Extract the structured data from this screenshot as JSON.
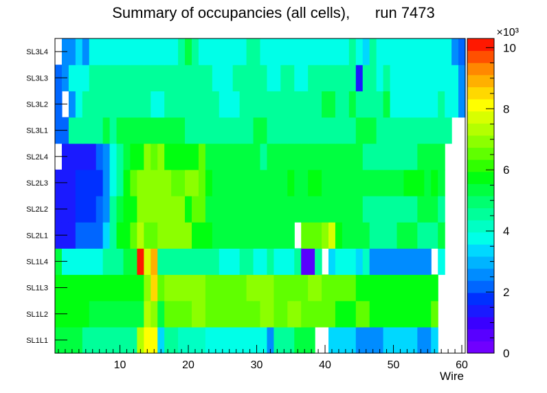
{
  "chart_data": {
    "type": "heatmap",
    "title": "Summary of occupancies (all cells),      run 7473",
    "xlabel": "Wire",
    "ylabel": "",
    "xlim": [
      0.5,
      60.5
    ],
    "x_ticks": [
      "10",
      "20",
      "30",
      "40",
      "50",
      "60"
    ],
    "y_categories": [
      "SL1L1",
      "SL1L2",
      "SL1L3",
      "SL1L4",
      "SL2L1",
      "SL2L2",
      "SL2L3",
      "SL2L4",
      "SL3L1",
      "SL3L2",
      "SL3L3",
      "SL3L4"
    ],
    "colorbar": {
      "min": 0,
      "max": 10.3,
      "exponent_label": "×10³",
      "ticks": [
        "0",
        "2",
        "4",
        "6",
        "8",
        "10"
      ]
    },
    "colors": {
      "palette": [
        "#7000ff",
        "#5800ff",
        "#3a00ff",
        "#1a1aff",
        "#0030ff",
        "#0066ff",
        "#008cff",
        "#00b4ff",
        "#00d8ff",
        "#00ffe8",
        "#00ffc4",
        "#00ff9a",
        "#00ff70",
        "#00ff40",
        "#00ff10",
        "#30ff00",
        "#60ff00",
        "#8cff00",
        "#b4ff00",
        "#d8ff00",
        "#ffff00",
        "#ffd800",
        "#ffb000",
        "#ff8800",
        "#ff5000",
        "#ff1800"
      ]
    },
    "rows": [
      {
        "label": "SL1L1",
        "values": [
          5.3,
          5.3,
          5.3,
          5.3,
          4.6,
          4.6,
          4.6,
          4.6,
          4.6,
          4.6,
          4.6,
          4.6,
          7.2,
          8.2,
          8.2,
          3.5,
          4.6,
          4.6,
          4.3,
          4.3,
          4.3,
          4.3,
          3.8,
          3.8,
          3.8,
          3.8,
          3.8,
          3.8,
          3.8,
          3.8,
          3.8,
          2.7,
          4.6,
          4.6,
          4.6,
          5.3,
          5.3,
          5.3,
          null,
          null,
          3.5,
          3.5,
          3.5,
          3.5,
          2.7,
          2.7,
          2.7,
          2.7,
          3.2,
          3.2,
          3.2,
          3.2,
          3.2,
          2.4,
          2.4,
          3.5,
          null,
          null,
          null,
          null
        ]
      },
      {
        "label": "SL1L2",
        "values": [
          5.9,
          5.9,
          5.9,
          5.9,
          5.9,
          5.3,
          5.3,
          5.3,
          5.3,
          5.3,
          5.3,
          5.3,
          5.3,
          7.2,
          6.8,
          5.3,
          6.4,
          6.4,
          6.4,
          6.4,
          6.8,
          6.8,
          6.4,
          6.4,
          6.4,
          6.4,
          6.4,
          6.4,
          6.4,
          6.4,
          6.8,
          6.8,
          6.4,
          6.4,
          6.8,
          6.8,
          6.4,
          6.4,
          6.4,
          6.4,
          6.4,
          5.9,
          5.9,
          5.9,
          6.4,
          6.4,
          5.9,
          5.9,
          5.9,
          5.9,
          5.9,
          5.9,
          5.9,
          5.9,
          5.9,
          6.4,
          null,
          null,
          null,
          null
        ]
      },
      {
        "label": "SL1L3",
        "values": [
          5.9,
          5.9,
          5.9,
          5.9,
          5.9,
          5.9,
          5.9,
          5.9,
          5.9,
          5.9,
          5.9,
          5.9,
          5.9,
          6.8,
          8.6,
          6.4,
          6.8,
          6.8,
          6.8,
          6.8,
          6.8,
          6.8,
          6.4,
          6.4,
          6.4,
          6.4,
          6.4,
          6.4,
          6.8,
          6.8,
          6.8,
          6.8,
          6.4,
          6.4,
          6.4,
          6.4,
          6.4,
          6.8,
          6.8,
          6.4,
          6.4,
          6.4,
          6.4,
          6.4,
          5.9,
          5.9,
          5.9,
          5.9,
          5.9,
          5.9,
          5.9,
          5.9,
          5.9,
          5.9,
          5.9,
          5.9,
          null,
          null,
          null,
          null
        ]
      },
      {
        "label": "SL1L4",
        "values": [
          5.3,
          3.8,
          3.8,
          3.8,
          3.8,
          3.8,
          3.8,
          4.6,
          4.6,
          4.6,
          5.3,
          5.3,
          10.0,
          7.6,
          9.0,
          4.6,
          4.6,
          4.6,
          4.6,
          4.6,
          4.6,
          4.6,
          4.6,
          4.6,
          3.8,
          3.8,
          3.8,
          4.6,
          4.6,
          3.8,
          3.8,
          4.6,
          3.8,
          3.8,
          3.8,
          4.6,
          0.6,
          0.6,
          4.6,
          null,
          3.2,
          3.8,
          3.8,
          3.8,
          3.2,
          4.2,
          2.7,
          2.7,
          2.7,
          2.7,
          2.7,
          2.7,
          2.7,
          2.7,
          2.7,
          null,
          3.8,
          null,
          null,
          null
        ]
      },
      {
        "label": "SL2L1",
        "values": [
          1.3,
          1.3,
          1.3,
          2.2,
          2.2,
          2.2,
          2.2,
          3.5,
          4.6,
          5.9,
          5.9,
          6.4,
          7.2,
          6.4,
          6.4,
          6.8,
          6.8,
          6.8,
          6.8,
          6.8,
          5.9,
          5.9,
          5.9,
          5.3,
          5.3,
          5.3,
          5.3,
          5.3,
          5.3,
          5.3,
          5.3,
          5.3,
          5.3,
          5.3,
          5.3,
          null,
          6.4,
          6.4,
          6.4,
          6.8,
          7.8,
          5.9,
          5.3,
          5.3,
          5.3,
          5.3,
          4.6,
          4.6,
          4.6,
          4.6,
          5.3,
          5.3,
          5.3,
          4.6,
          4.6,
          4.6,
          5.3,
          null,
          null,
          null
        ]
      },
      {
        "label": "SL2L2",
        "values": [
          1.3,
          1.3,
          1.3,
          1.8,
          1.8,
          1.8,
          2.2,
          2.7,
          4.6,
          5.3,
          5.9,
          5.9,
          6.8,
          6.8,
          6.8,
          6.8,
          6.8,
          6.8,
          6.8,
          5.9,
          6.4,
          6.4,
          5.3,
          5.3,
          5.3,
          5.3,
          5.3,
          5.3,
          5.3,
          5.3,
          5.3,
          5.3,
          5.3,
          5.3,
          5.3,
          5.3,
          5.3,
          5.3,
          5.3,
          5.3,
          5.3,
          5.3,
          5.3,
          5.3,
          5.3,
          4.6,
          4.6,
          4.6,
          4.6,
          4.6,
          4.6,
          4.6,
          4.6,
          5.3,
          5.3,
          5.3,
          4.6,
          null,
          null,
          null
        ]
      },
      {
        "label": "SL2L3",
        "values": [
          1.3,
          1.3,
          1.3,
          1.8,
          1.8,
          1.8,
          1.8,
          2.7,
          3.8,
          4.6,
          5.9,
          6.4,
          6.8,
          6.8,
          6.8,
          6.8,
          6.8,
          6.4,
          6.4,
          6.8,
          6.8,
          6.4,
          5.9,
          5.3,
          5.3,
          5.3,
          5.3,
          5.3,
          5.3,
          5.3,
          5.3,
          5.3,
          5.3,
          5.3,
          5.9,
          5.3,
          5.3,
          5.9,
          5.9,
          5.3,
          5.3,
          5.3,
          5.3,
          5.3,
          5.3,
          5.3,
          5.3,
          5.3,
          5.3,
          5.3,
          5.3,
          5.9,
          5.9,
          5.9,
          5.3,
          5.9,
          5.3,
          null,
          null,
          null
        ]
      },
      {
        "label": "SL2L4",
        "values": [
          null,
          1.3,
          1.3,
          1.3,
          1.3,
          1.3,
          2.2,
          2.7,
          3.8,
          4.6,
          5.3,
          5.9,
          5.9,
          6.8,
          6.4,
          6.8,
          5.9,
          5.9,
          5.9,
          5.9,
          5.9,
          6.4,
          5.3,
          5.3,
          5.3,
          5.3,
          5.3,
          5.3,
          5.3,
          5.3,
          4.6,
          5.3,
          5.3,
          5.3,
          5.3,
          5.3,
          5.3,
          5.3,
          5.3,
          5.3,
          5.3,
          5.3,
          5.3,
          5.3,
          5.3,
          4.6,
          4.6,
          4.6,
          4.6,
          4.6,
          4.6,
          4.6,
          4.6,
          5.3,
          5.3,
          5.3,
          5.3,
          null,
          null,
          null
        ]
      },
      {
        "label": "SL3L1",
        "values": [
          2.2,
          2.2,
          4.6,
          4.6,
          4.6,
          4.6,
          4.6,
          5.3,
          4.6,
          5.3,
          5.3,
          5.3,
          5.3,
          5.3,
          5.3,
          5.3,
          5.3,
          5.3,
          5.3,
          4.6,
          4.6,
          4.6,
          4.6,
          4.6,
          4.6,
          4.6,
          4.6,
          4.6,
          4.6,
          5.3,
          5.3,
          4.6,
          4.6,
          4.6,
          4.6,
          4.6,
          4.6,
          4.6,
          4.6,
          4.6,
          4.6,
          4.6,
          4.6,
          4.6,
          5.3,
          5.3,
          5.3,
          4.6,
          4.6,
          4.6,
          4.6,
          4.6,
          4.6,
          4.6,
          4.6,
          4.6,
          4.6,
          4.6,
          null,
          null
        ]
      },
      {
        "label": "SL3L2",
        "values": [
          2.2,
          null,
          2.7,
          3.8,
          4.6,
          4.6,
          4.6,
          4.6,
          4.6,
          4.6,
          4.6,
          4.6,
          4.6,
          4.6,
          3.8,
          3.8,
          4.6,
          4.6,
          4.6,
          4.6,
          4.6,
          4.6,
          4.6,
          4.6,
          3.8,
          3.8,
          3.8,
          4.6,
          4.6,
          4.6,
          4.6,
          4.6,
          4.6,
          4.6,
          4.6,
          4.6,
          4.6,
          4.6,
          4.6,
          5.3,
          5.3,
          4.6,
          4.6,
          5.3,
          4.6,
          4.6,
          4.6,
          4.6,
          5.3,
          3.8,
          3.8,
          3.8,
          3.8,
          3.8,
          3.8,
          3.8,
          4.6,
          3.8,
          3.8,
          2.7
        ]
      },
      {
        "label": "SL3L3",
        "values": [
          2.2,
          2.7,
          3.8,
          3.8,
          3.8,
          4.6,
          4.6,
          4.6,
          4.6,
          4.6,
          4.6,
          4.6,
          4.6,
          4.6,
          4.6,
          4.6,
          4.6,
          4.6,
          4.6,
          4.6,
          4.6,
          4.6,
          4.6,
          3.8,
          3.8,
          3.8,
          4.6,
          4.6,
          4.6,
          4.6,
          4.6,
          3.8,
          3.8,
          4.6,
          4.6,
          3.8,
          3.8,
          4.6,
          4.6,
          4.6,
          4.6,
          4.6,
          4.6,
          4.6,
          1.3,
          4.6,
          4.6,
          3.8,
          4.6,
          3.8,
          3.8,
          3.8,
          3.8,
          3.8,
          3.8,
          3.8,
          3.8,
          3.8,
          3.8,
          2.7
        ]
      },
      {
        "label": "SL3L4",
        "values": [
          null,
          2.7,
          2.7,
          3.5,
          2.7,
          3.8,
          3.8,
          3.8,
          3.8,
          3.8,
          3.8,
          3.8,
          3.8,
          3.8,
          3.8,
          3.8,
          3.8,
          3.8,
          4.6,
          5.3,
          4.6,
          3.8,
          3.8,
          3.8,
          3.8,
          3.8,
          3.8,
          3.8,
          4.6,
          4.6,
          3.8,
          3.8,
          3.8,
          3.8,
          3.8,
          3.8,
          3.8,
          3.8,
          3.8,
          3.8,
          3.8,
          3.8,
          3.8,
          4.6,
          3.8,
          3.2,
          4.6,
          3.8,
          3.8,
          3.8,
          3.8,
          3.8,
          3.8,
          3.8,
          3.8,
          3.8,
          3.8,
          3.8,
          2.7,
          2.2
        ]
      }
    ]
  }
}
